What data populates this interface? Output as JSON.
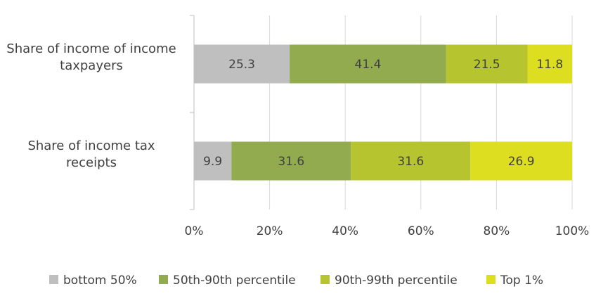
{
  "chart_data": {
    "type": "bar",
    "orientation": "horizontal",
    "stacked": true,
    "categories": [
      [
        "Share of income of income",
        "taxpayers"
      ],
      [
        "Share of income tax",
        "receipts"
      ]
    ],
    "series": [
      {
        "name": "bottom 50%",
        "color": "#bfbfbf",
        "values": [
          25.3,
          9.9
        ]
      },
      {
        "name": "50th-90th percentile",
        "color": "#92ab4e",
        "values": [
          41.4,
          31.6
        ]
      },
      {
        "name": "90th-99th percentile",
        "color": "#b5c42f",
        "values": [
          21.5,
          31.6
        ]
      },
      {
        "name": "Top 1%",
        "color": "#dcde1f",
        "values": [
          11.8,
          26.9
        ]
      }
    ],
    "value_labels": [
      [
        "25.3",
        "41.4",
        "21.5",
        "11.8"
      ],
      [
        "9.9",
        "31.6",
        "31.6",
        "26.9"
      ]
    ],
    "xticks": [
      "0%",
      "20%",
      "40%",
      "60%",
      "80%",
      "100%"
    ],
    "xlim": [
      0,
      100
    ],
    "grid": true,
    "legend": "bottom"
  }
}
